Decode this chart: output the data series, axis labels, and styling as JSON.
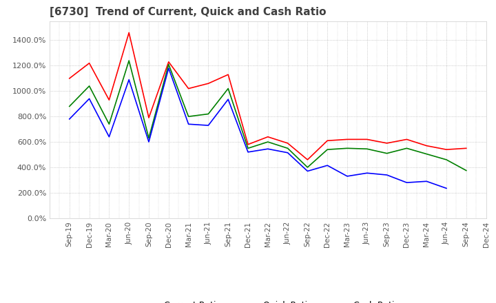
{
  "title": "[6730]  Trend of Current, Quick and Cash Ratio",
  "ylim": [
    0,
    1550
  ],
  "yticks": [
    0,
    200,
    400,
    600,
    800,
    1000,
    1200,
    1400
  ],
  "ytick_labels": [
    "0.0%",
    "200.0%",
    "400.0%",
    "600.0%",
    "800.0%",
    "1000.0%",
    "1200.0%",
    "1400.0%"
  ],
  "x_labels": [
    "Sep-19",
    "Dec-19",
    "Mar-20",
    "Jun-20",
    "Sep-20",
    "Dec-20",
    "Mar-21",
    "Jun-21",
    "Sep-21",
    "Dec-21",
    "Mar-22",
    "Jun-22",
    "Sep-22",
    "Dec-22",
    "Mar-23",
    "Jun-23",
    "Sep-23",
    "Dec-23",
    "Mar-24",
    "Jun-24",
    "Sep-24",
    "Dec-24"
  ],
  "current_ratio": [
    1100,
    1220,
    930,
    1460,
    790,
    1230,
    1020,
    1060,
    1130,
    580,
    640,
    590,
    460,
    610,
    620,
    620,
    590,
    620,
    570,
    540,
    550,
    null
  ],
  "quick_ratio": [
    880,
    1040,
    740,
    1240,
    630,
    1210,
    800,
    820,
    1020,
    550,
    600,
    550,
    400,
    540,
    550,
    545,
    510,
    550,
    505,
    460,
    375,
    null
  ],
  "cash_ratio": [
    780,
    940,
    640,
    1090,
    600,
    1180,
    740,
    730,
    935,
    520,
    545,
    515,
    370,
    415,
    330,
    355,
    340,
    280,
    290,
    235,
    null,
    null
  ],
  "current_color": "#ff0000",
  "quick_color": "#008000",
  "cash_color": "#0000ff",
  "bg_color": "#ffffff",
  "grid_color": "#aaaaaa",
  "title_color": "#404040",
  "legend_labels": [
    "Current Ratio",
    "Quick Ratio",
    "Cash Ratio"
  ]
}
